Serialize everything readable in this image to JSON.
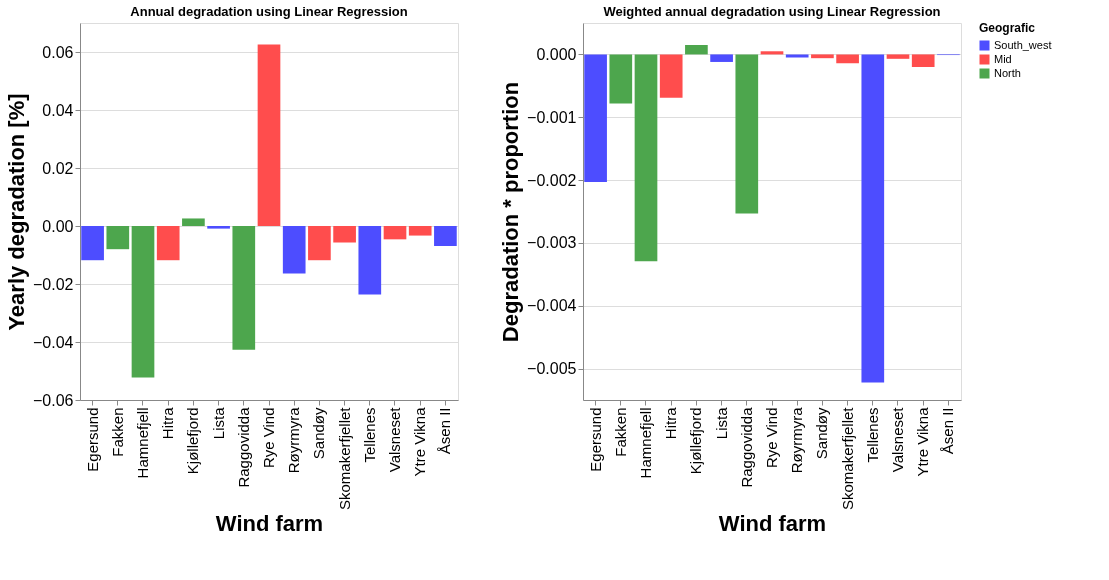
{
  "chart_data": [
    {
      "type": "bar",
      "title": "Annual degradation using Linear Regression",
      "xlabel": "Wind farm",
      "ylabel": "Yearly degradation [%]",
      "categories": [
        "Egersund",
        "Fakken",
        "Hamnefjell",
        "Hitra",
        "Kjøllefjord",
        "Lista",
        "Raggovidda",
        "Rye Vind",
        "Røyrmyra",
        "Sandøy",
        "Skomakerfjellet",
        "Tellenes",
        "Valsneset",
        "Ytre Vikna",
        "Åsen II"
      ],
      "series": [
        {
          "color": "#4d4dff",
          "values": [
            -0.0118,
            null,
            null,
            null,
            null,
            -0.0009,
            null,
            null,
            -0.0164,
            null,
            null,
            -0.0236,
            null,
            null,
            -0.0069
          ]
        },
        {
          "color": "#ff4d4d",
          "values": [
            null,
            null,
            null,
            -0.0118,
            null,
            null,
            null,
            0.0626,
            null,
            -0.0118,
            -0.0057,
            null,
            -0.0046,
            -0.0033,
            null
          ]
        },
        {
          "color": "#4da64d",
          "values": [
            null,
            -0.008,
            -0.0522,
            null,
            0.0026,
            null,
            -0.0427,
            null,
            null,
            null,
            null,
            null,
            null,
            null,
            null
          ]
        }
      ],
      "ylim": [
        -0.06,
        0.07
      ],
      "yticks": [
        {
          "value": -0.06,
          "label": "−0.06"
        },
        {
          "value": -0.04,
          "label": "−0.04"
        },
        {
          "value": -0.02,
          "label": "−0.02"
        },
        {
          "value": 0,
          "label": "0.00"
        },
        {
          "value": 0.02,
          "label": "0.02"
        },
        {
          "value": 0.04,
          "label": "0.04"
        },
        {
          "value": 0.06,
          "label": "0.06"
        }
      ],
      "grid": "y",
      "legend": false
    },
    {
      "type": "bar",
      "title": "Weighted annual degradation using Linear Regression",
      "xlabel": "Wind farm",
      "ylabel": "Degradation * proportion",
      "legend_title": "Geografic",
      "categories": [
        "Egersund",
        "Fakken",
        "Hamnefjell",
        "Hitra",
        "Kjøllefjord",
        "Lista",
        "Raggovidda",
        "Rye Vind",
        "Røyrmyra",
        "Sandøy",
        "Skomakerfjellet",
        "Tellenes",
        "Valsneset",
        "Ytre Vikna",
        "Åsen II"
      ],
      "series": [
        {
          "name": "South_west",
          "color": "#4d4dff",
          "values": [
            -0.00203,
            null,
            null,
            null,
            null,
            -0.00012,
            null,
            null,
            -5e-05,
            null,
            null,
            -0.00522,
            null,
            null,
            -1e-05
          ]
        },
        {
          "name": "Mid",
          "color": "#ff4d4d",
          "values": [
            null,
            null,
            null,
            -0.00069,
            null,
            null,
            null,
            5e-05,
            null,
            -6e-05,
            -0.00014,
            null,
            -7e-05,
            -0.0002,
            null
          ]
        },
        {
          "name": "North",
          "color": "#4da64d",
          "values": [
            null,
            -0.00078,
            -0.00329,
            null,
            0.00015,
            null,
            -0.00253,
            null,
            null,
            null,
            null,
            null,
            null,
            null,
            null
          ]
        }
      ],
      "ylim": [
        -0.0055,
        0.0005
      ],
      "yticks": [
        {
          "value": -0.005,
          "label": "−0.005"
        },
        {
          "value": -0.004,
          "label": "−0.004"
        },
        {
          "value": -0.003,
          "label": "−0.003"
        },
        {
          "value": -0.002,
          "label": "−0.002"
        },
        {
          "value": -0.001,
          "label": "−0.001"
        },
        {
          "value": 0,
          "label": "0.000"
        }
      ],
      "grid": "y",
      "legend": "right"
    }
  ]
}
